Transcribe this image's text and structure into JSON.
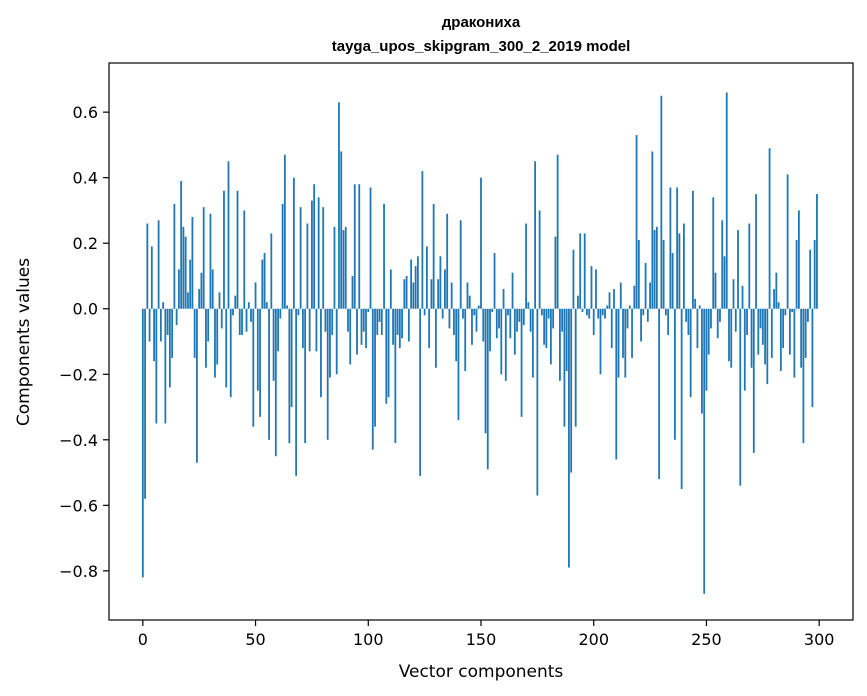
{
  "chart_data": {
    "type": "bar",
    "title": "дракониха",
    "subtitle": "tayga_upos_skipgram_300_2_2019 model",
    "xlabel": "Vector components",
    "ylabel": "Components values",
    "xlim": [
      -15,
      315
    ],
    "ylim": [
      -0.95,
      0.75
    ],
    "x_ticks": [
      0,
      50,
      100,
      150,
      200,
      250,
      300
    ],
    "x_tick_labels": [
      "0",
      "50",
      "100",
      "150",
      "200",
      "250",
      "300"
    ],
    "y_ticks": [
      -0.8,
      -0.6,
      -0.4,
      -0.2,
      0.0,
      0.2,
      0.4,
      0.6
    ],
    "y_tick_labels": [
      "−0.8",
      "−0.6",
      "−0.4",
      "−0.2",
      "0.0",
      "0.2",
      "0.4",
      "0.6"
    ],
    "grid": false,
    "bar_color": "#1f77b4",
    "x_start": 0,
    "values": [
      -0.82,
      -0.58,
      0.26,
      -0.1,
      0.19,
      -0.16,
      -0.35,
      0.27,
      -0.1,
      0.02,
      -0.35,
      -0.08,
      -0.24,
      -0.15,
      0.32,
      -0.05,
      0.12,
      0.39,
      0.25,
      0.22,
      0.05,
      0.15,
      0.28,
      -0.15,
      -0.47,
      0.06,
      0.11,
      0.31,
      -0.18,
      -0.1,
      0.29,
      0.12,
      -0.21,
      -0.17,
      0.05,
      -0.06,
      0.36,
      -0.24,
      0.45,
      -0.27,
      -0.02,
      0.04,
      0.36,
      -0.08,
      -0.08,
      0.3,
      -0.07,
      0.02,
      -0.04,
      -0.36,
      0.08,
      -0.25,
      -0.33,
      0.15,
      0.17,
      0.02,
      -0.4,
      0.23,
      -0.22,
      -0.45,
      -0.13,
      -0.03,
      0.32,
      0.47,
      0.01,
      -0.41,
      -0.3,
      0.4,
      -0.51,
      -0.02,
      0.31,
      -0.12,
      -0.41,
      0.26,
      -0.13,
      0.33,
      0.38,
      -0.13,
      0.34,
      -0.27,
      0.31,
      -0.07,
      -0.4,
      -0.21,
      -0.08,
      0.25,
      -0.2,
      0.63,
      0.48,
      0.24,
      0.25,
      -0.07,
      -0.17,
      0.1,
      0.38,
      -0.14,
      0.38,
      -0.11,
      -0.07,
      -0.12,
      -0.01,
      0.37,
      -0.43,
      -0.36,
      -0.08,
      -0.04,
      -0.08,
      0.32,
      -0.29,
      -0.27,
      0.12,
      -0.11,
      -0.41,
      -0.08,
      -0.12,
      -0.09,
      0.09,
      0.1,
      -0.1,
      0.15,
      0.08,
      0.13,
      0.16,
      -0.51,
      0.42,
      -0.02,
      0.19,
      -0.12,
      0.09,
      0.32,
      -0.18,
      0.09,
      0.16,
      -0.03,
      0.12,
      0.29,
      -0.06,
      0.08,
      -0.08,
      -0.16,
      -0.34,
      0.27,
      -0.03,
      -0.19,
      0.08,
      0.04,
      -0.11,
      -0.02,
      -0.07,
      0.01,
      0.4,
      -0.1,
      -0.38,
      -0.49,
      -0.13,
      -0.01,
      0.17,
      -0.09,
      -0.06,
      -0.2,
      0.06,
      -0.22,
      -0.02,
      -0.09,
      0.11,
      -0.14,
      -0.07,
      -0.04,
      -0.33,
      -0.05,
      0.26,
      0.02,
      -0.07,
      -0.21,
      0.45,
      -0.57,
      0.3,
      -0.02,
      -0.11,
      -0.12,
      -0.03,
      -0.17,
      -0.06,
      0.22,
      0.47,
      -0.22,
      -0.07,
      -0.36,
      -0.19,
      -0.79,
      -0.5,
      0.18,
      -0.36,
      0.04,
      0.23,
      -0.01,
      0.23,
      -0.02,
      -0.03,
      0.13,
      -0.08,
      0.12,
      -0.03,
      -0.2,
      -0.02,
      -0.03,
      0.01,
      0.05,
      -0.12,
      0.06,
      -0.46,
      -0.21,
      0.08,
      -0.15,
      -0.21,
      -0.06,
      0.01,
      -0.15,
      0.07,
      0.53,
      0.21,
      -0.1,
      -0.02,
      0.14,
      -0.04,
      0.08,
      0.48,
      0.24,
      0.25,
      -0.52,
      0.65,
      0.21,
      -0.02,
      -0.08,
      0.37,
      0.17,
      -0.4,
      0.37,
      0.23,
      -0.55,
      0.26,
      -0.04,
      -0.08,
      -0.27,
      0.36,
      0.03,
      -0.12,
      0.01,
      -0.32,
      -0.87,
      -0.25,
      -0.14,
      -0.06,
      0.34,
      0.11,
      -0.09,
      -0.04,
      0.27,
      0.16,
      0.66,
      -0.16,
      -0.18,
      0.09,
      -0.07,
      0.24,
      -0.54,
      0.07,
      -0.25,
      -0.08,
      0.26,
      -0.18,
      -0.44,
      0.35,
      -0.14,
      -0.06,
      -0.11,
      -0.17,
      -0.23,
      0.49,
      -0.15,
      0.06,
      0.11,
      0.02,
      -0.19,
      -0.12,
      -0.02,
      0.41,
      -0.14,
      -0.01,
      -0.21,
      0.21,
      0.3,
      -0.18,
      -0.41,
      -0.15,
      -0.04,
      0.18,
      -0.3,
      0.21,
      0.35
    ]
  }
}
